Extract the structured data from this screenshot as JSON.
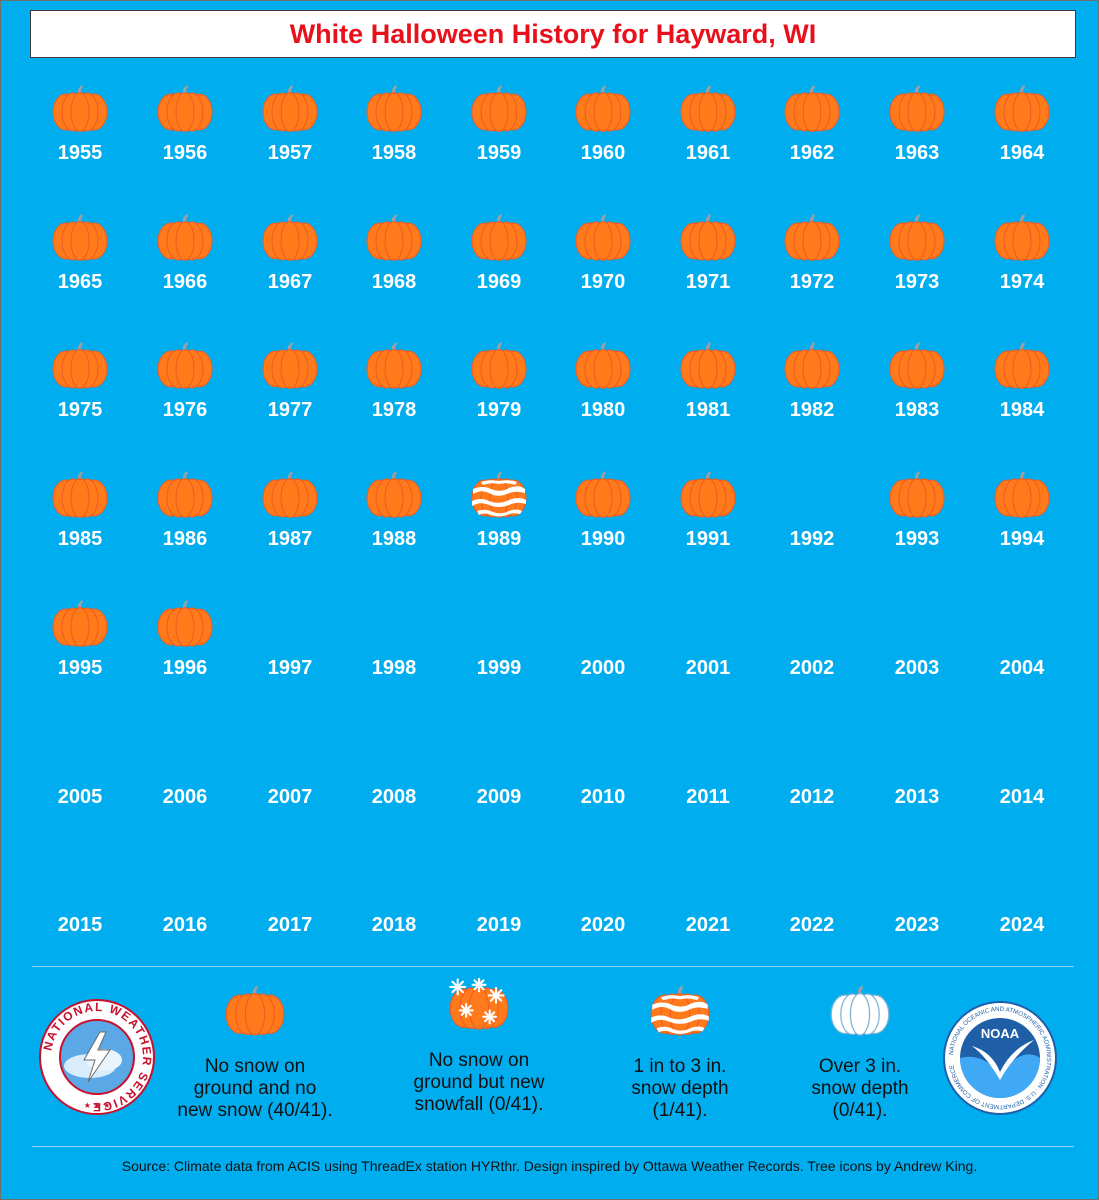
{
  "title": "White Halloween History for Hayward, WI",
  "colors": {
    "background": "#00AEEF",
    "title_text": "#E8101B",
    "pumpkin": "#FF7A1A",
    "pumpkin_rib": "#F15A22",
    "stem": "#9AA0A6",
    "snow": "#FFFFFF"
  },
  "years": [
    {
      "year": "1955",
      "icon": "pumpkin-no-snow-icon"
    },
    {
      "year": "1956",
      "icon": "pumpkin-no-snow-icon"
    },
    {
      "year": "1957",
      "icon": "pumpkin-no-snow-icon"
    },
    {
      "year": "1958",
      "icon": "pumpkin-no-snow-icon"
    },
    {
      "year": "1959",
      "icon": "pumpkin-no-snow-icon"
    },
    {
      "year": "1960",
      "icon": "pumpkin-no-snow-icon"
    },
    {
      "year": "1961",
      "icon": "pumpkin-no-snow-icon"
    },
    {
      "year": "1962",
      "icon": "pumpkin-no-snow-icon"
    },
    {
      "year": "1963",
      "icon": "pumpkin-no-snow-icon"
    },
    {
      "year": "1964",
      "icon": "pumpkin-no-snow-icon"
    },
    {
      "year": "1965",
      "icon": "pumpkin-no-snow-icon"
    },
    {
      "year": "1966",
      "icon": "pumpkin-no-snow-icon"
    },
    {
      "year": "1967",
      "icon": "pumpkin-no-snow-icon"
    },
    {
      "year": "1968",
      "icon": "pumpkin-no-snow-icon"
    },
    {
      "year": "1969",
      "icon": "pumpkin-no-snow-icon"
    },
    {
      "year": "1970",
      "icon": "pumpkin-no-snow-icon"
    },
    {
      "year": "1971",
      "icon": "pumpkin-no-snow-icon"
    },
    {
      "year": "1972",
      "icon": "pumpkin-no-snow-icon"
    },
    {
      "year": "1973",
      "icon": "pumpkin-no-snow-icon"
    },
    {
      "year": "1974",
      "icon": "pumpkin-no-snow-icon"
    },
    {
      "year": "1975",
      "icon": "pumpkin-no-snow-icon"
    },
    {
      "year": "1976",
      "icon": "pumpkin-no-snow-icon"
    },
    {
      "year": "1977",
      "icon": "pumpkin-no-snow-icon"
    },
    {
      "year": "1978",
      "icon": "pumpkin-no-snow-icon"
    },
    {
      "year": "1979",
      "icon": "pumpkin-no-snow-icon"
    },
    {
      "year": "1980",
      "icon": "pumpkin-no-snow-icon"
    },
    {
      "year": "1981",
      "icon": "pumpkin-no-snow-icon"
    },
    {
      "year": "1982",
      "icon": "pumpkin-no-snow-icon"
    },
    {
      "year": "1983",
      "icon": "pumpkin-no-snow-icon"
    },
    {
      "year": "1984",
      "icon": "pumpkin-no-snow-icon"
    },
    {
      "year": "1985",
      "icon": "pumpkin-no-snow-icon"
    },
    {
      "year": "1986",
      "icon": "pumpkin-no-snow-icon"
    },
    {
      "year": "1987",
      "icon": "pumpkin-no-snow-icon"
    },
    {
      "year": "1988",
      "icon": "pumpkin-no-snow-icon"
    },
    {
      "year": "1989",
      "icon": "pumpkin-snow-depth-icon"
    },
    {
      "year": "1990",
      "icon": "pumpkin-no-snow-icon"
    },
    {
      "year": "1991",
      "icon": "pumpkin-no-snow-icon"
    },
    {
      "year": "1992",
      "icon": ""
    },
    {
      "year": "1993",
      "icon": "pumpkin-no-snow-icon"
    },
    {
      "year": "1994",
      "icon": "pumpkin-no-snow-icon"
    },
    {
      "year": "1995",
      "icon": "pumpkin-no-snow-icon"
    },
    {
      "year": "1996",
      "icon": "pumpkin-no-snow-icon"
    },
    {
      "year": "1997",
      "icon": ""
    },
    {
      "year": "1998",
      "icon": ""
    },
    {
      "year": "1999",
      "icon": ""
    },
    {
      "year": "2000",
      "icon": ""
    },
    {
      "year": "2001",
      "icon": ""
    },
    {
      "year": "2002",
      "icon": ""
    },
    {
      "year": "2003",
      "icon": ""
    },
    {
      "year": "2004",
      "icon": ""
    },
    {
      "year": "2005",
      "icon": ""
    },
    {
      "year": "2006",
      "icon": ""
    },
    {
      "year": "2007",
      "icon": ""
    },
    {
      "year": "2008",
      "icon": ""
    },
    {
      "year": "2009",
      "icon": ""
    },
    {
      "year": "2010",
      "icon": ""
    },
    {
      "year": "2011",
      "icon": ""
    },
    {
      "year": "2012",
      "icon": ""
    },
    {
      "year": "2013",
      "icon": ""
    },
    {
      "year": "2014",
      "icon": ""
    },
    {
      "year": "2015",
      "icon": ""
    },
    {
      "year": "2016",
      "icon": ""
    },
    {
      "year": "2017",
      "icon": ""
    },
    {
      "year": "2018",
      "icon": ""
    },
    {
      "year": "2019",
      "icon": ""
    },
    {
      "year": "2020",
      "icon": ""
    },
    {
      "year": "2021",
      "icon": ""
    },
    {
      "year": "2022",
      "icon": ""
    },
    {
      "year": "2023",
      "icon": ""
    },
    {
      "year": "2024",
      "icon": ""
    }
  ],
  "legend": [
    {
      "icon": "pumpkin-no-snow-icon",
      "lines": [
        "No snow on",
        "ground and no",
        "new snow (40/41)."
      ]
    },
    {
      "icon": "pumpkin-new-snowfall-icon",
      "lines": [
        "No snow on",
        "ground but new",
        "snowfall (0/41)."
      ]
    },
    {
      "icon": "pumpkin-snow-depth-icon",
      "lines": [
        "1 in to 3 in.",
        "snow depth",
        "(1/41)."
      ]
    },
    {
      "icon": "pumpkin-heavy-snow-icon",
      "lines": [
        "Over 3 in.",
        "snow depth",
        "(0/41)."
      ]
    }
  ],
  "logos": {
    "nws_text": "NATIONAL WEATHER SERVICE",
    "noaa_text": "NOAA",
    "noaa_ring_text": "NATIONAL OCEANIC AND ATMOSPHERIC ADMINISTRATION · U.S. DEPARTMENT OF COMMERCE"
  },
  "source": "Source: Climate data from ACIS using ThreadEx station HYRthr. Design inspired by Ottawa Weather Records. Tree icons by Andrew King."
}
